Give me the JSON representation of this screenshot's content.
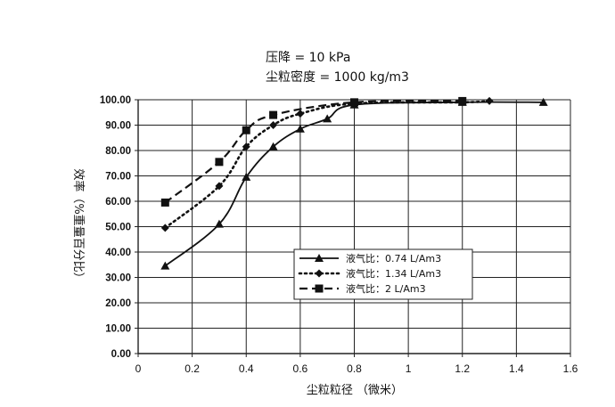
{
  "chart_data": {
    "type": "line",
    "title_lines": [
      "压降 = 10 kPa",
      "尘粒密度 = 1000 kg/m3"
    ],
    "xlabel": "尘粒粒径 （微米）",
    "ylabel": "效率（%重量百分比）",
    "xlim": [
      0,
      1.6
    ],
    "ylim": [
      0,
      100
    ],
    "x_ticks": [
      0,
      0.2,
      0.4,
      0.6,
      0.8,
      1,
      1.2,
      1.4,
      1.6
    ],
    "x_tick_labels": [
      "0",
      "0.2",
      "0.4",
      "0.6",
      "0.8",
      "1",
      "1.2",
      "1.4",
      "1.6"
    ],
    "x_grid": [
      0,
      0.2,
      0.4,
      0.6,
      0.8,
      1.0,
      1.2,
      1.4,
      1.6
    ],
    "y_ticks": [
      0,
      10,
      20,
      30,
      40,
      50,
      60,
      70,
      80,
      90,
      100
    ],
    "y_tick_labels": [
      "0.00",
      "10.00",
      "20.00",
      "30.00",
      "40.00",
      "50.00",
      "60.00",
      "70.00",
      "80.00",
      "90.00",
      "100.00"
    ],
    "grid": true,
    "legend_position": "lower-right",
    "series": [
      {
        "name": "液气比：0.74 L/Am3",
        "line_style": "solid",
        "marker": "triangle",
        "x": [
          0.1,
          0.3,
          0.4,
          0.5,
          0.6,
          0.7,
          0.8,
          1.2,
          1.5
        ],
        "y": [
          34.5,
          51.0,
          69.5,
          81.5,
          88.5,
          92.5,
          98.0,
          99.0,
          99.0
        ]
      },
      {
        "name": "液气比：1.34 L/Am3",
        "line_style": "dotted",
        "marker": "diamond",
        "x": [
          0.1,
          0.3,
          0.4,
          0.5,
          0.6,
          0.8,
          1.2,
          1.3
        ],
        "y": [
          49.5,
          66.0,
          81.5,
          90.0,
          94.5,
          98.5,
          99.0,
          99.5
        ]
      },
      {
        "name": "液气比：2 L/Am3",
        "line_style": "dashed",
        "marker": "square",
        "x": [
          0.1,
          0.3,
          0.4,
          0.5,
          0.8,
          1.2
        ],
        "y": [
          59.5,
          75.5,
          88.0,
          94.0,
          99.0,
          99.5
        ]
      }
    ]
  }
}
